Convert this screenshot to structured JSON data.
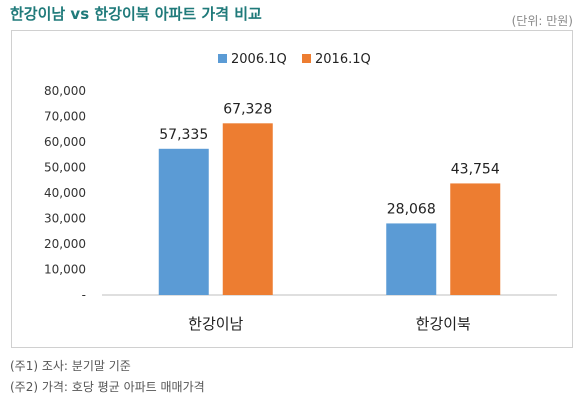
{
  "header": {
    "title": "한강이남 vs 한강이북 아파트 가격 비교",
    "unit": "(단위: 만원)"
  },
  "notes": [
    "(주1) 조사: 분기말 기준",
    "(주2) 가격: 호당 평균 아파트 매매가격"
  ],
  "colors": {
    "series_2006": "#5b9bd5",
    "series_2016": "#ed7d31",
    "title": "#1f7a7a"
  },
  "chart_data": {
    "type": "bar",
    "title": "한강이남 vs 한강이북 아파트 가격 비교",
    "xlabel": "",
    "ylabel": "",
    "categories": [
      "한강이남",
      "한강이북"
    ],
    "series": [
      {
        "name": "2006.1Q",
        "values": [
          57335,
          28068
        ],
        "labels": [
          "57,335",
          "28,068"
        ]
      },
      {
        "name": "2016.1Q",
        "values": [
          67328,
          43754
        ],
        "labels": [
          "67,328",
          "43,754"
        ]
      }
    ],
    "ylim": [
      0,
      80000
    ],
    "yticks": [
      0,
      10000,
      20000,
      30000,
      40000,
      50000,
      60000,
      70000,
      80000
    ],
    "ytick_labels": [
      "-",
      "10,000",
      "20,000",
      "30,000",
      "40,000",
      "50,000",
      "60,000",
      "70,000",
      "80,000"
    ],
    "grid": false,
    "legend_position": "top-center"
  }
}
